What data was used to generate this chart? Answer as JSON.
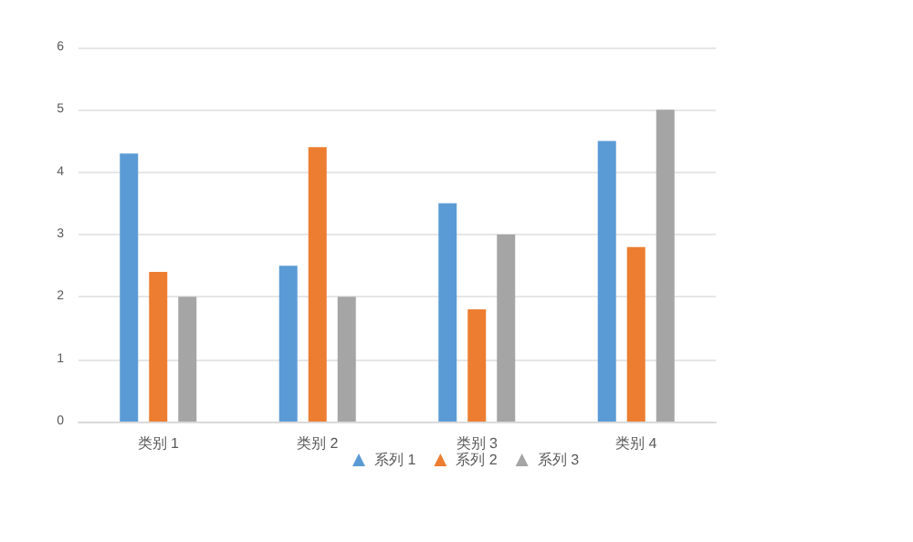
{
  "chart_data": {
    "type": "bar",
    "categories": [
      "类别 1",
      "类别 2",
      "类别 3",
      "类别 4"
    ],
    "series": [
      {
        "name": "系列 1",
        "color": "#5b9bd5",
        "values": [
          4.3,
          2.5,
          3.5,
          4.5
        ]
      },
      {
        "name": "系列 2",
        "color": "#ed7d31",
        "values": [
          2.4,
          4.4,
          1.8,
          2.8
        ]
      },
      {
        "name": "系列 3",
        "color": "#a5a5a5",
        "values": [
          2,
          2,
          3,
          5
        ]
      }
    ],
    "marker": "triangle",
    "ylim": [
      0,
      6
    ],
    "yticks": [
      0,
      1,
      2,
      3,
      4,
      5,
      6
    ],
    "grid": "y",
    "legend": "bottom"
  }
}
